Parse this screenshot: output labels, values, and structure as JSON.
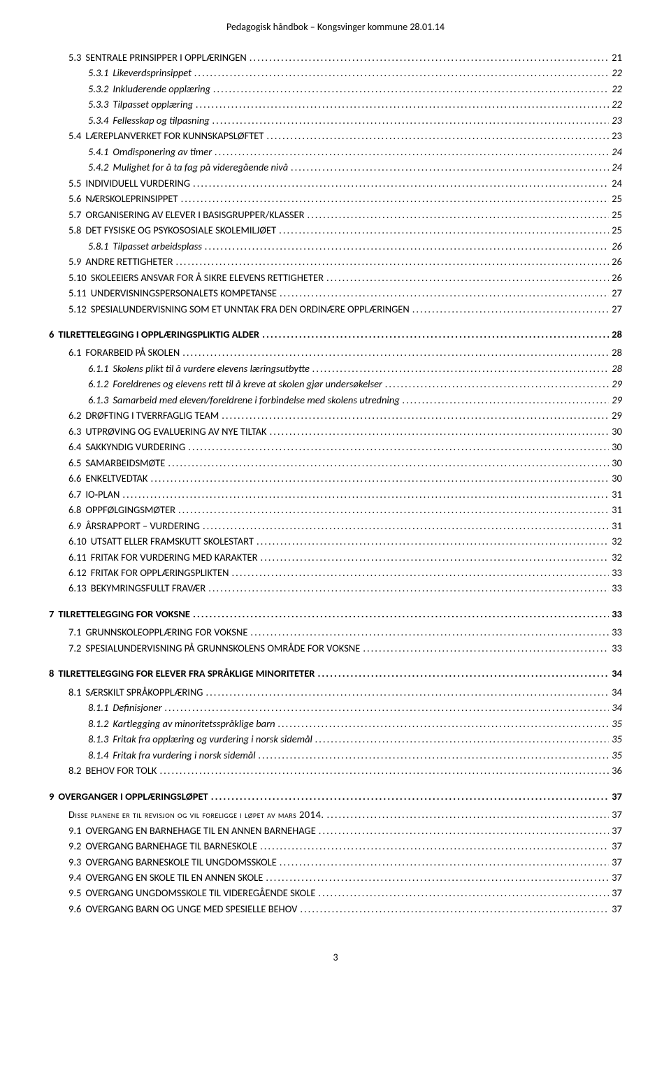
{
  "header": "Pedagogisk håndbok – Kongsvinger kommune 28.01.14",
  "footer_page": "3",
  "toc": [
    {
      "level": 2,
      "num": "5.3",
      "label": "SENTRALE PRINSIPPER I OPPLÆRINGEN",
      "page": "21"
    },
    {
      "level": 3,
      "num": "5.3.1",
      "label": "Likeverdsprinsippet",
      "page": "22"
    },
    {
      "level": 3,
      "num": "5.3.2",
      "label": "Inkluderende opplæring",
      "page": "22"
    },
    {
      "level": 3,
      "num": "5.3.3",
      "label": "Tilpasset opplæring",
      "page": "22"
    },
    {
      "level": 3,
      "num": "5.3.4",
      "label": "Fellesskap og tilpasning",
      "page": "23"
    },
    {
      "level": 2,
      "num": "5.4",
      "label": "LÆREPLANVERKET FOR KUNNSKAPSLØFTET",
      "page": "23"
    },
    {
      "level": 3,
      "num": "5.4.1",
      "label": "Omdisponering av timer",
      "page": "24"
    },
    {
      "level": 3,
      "num": "5.4.2",
      "label": "Mulighet for å ta fag på videregående nivå",
      "page": "24"
    },
    {
      "level": 2,
      "num": "5.5",
      "label": "INDIVIDUELL VURDERING",
      "page": "24"
    },
    {
      "level": 2,
      "num": "5.6",
      "label": "NÆRSKOLEPRINSIPPET",
      "page": "25"
    },
    {
      "level": 2,
      "num": "5.7",
      "label": "ORGANISERING AV ELEVER I BASISGRUPPER/KLASSER",
      "page": "25"
    },
    {
      "level": 2,
      "num": "5.8",
      "label": "DET FYSISKE OG PSYKOSOSIALE SKOLEMILJØET",
      "page": "25"
    },
    {
      "level": 3,
      "num": "5.8.1",
      "label": "Tilpasset arbeidsplass",
      "page": "26"
    },
    {
      "level": 2,
      "num": "5.9",
      "label": "ANDRE RETTIGHETER",
      "page": "26"
    },
    {
      "level": 2,
      "num": "5.10",
      "label": "SKOLEEIERS ANSVAR FOR Å SIKRE ELEVENS RETTIGHETER",
      "page": "26"
    },
    {
      "level": 2,
      "num": "5.11",
      "label": "UNDERVISNINGSPERSONALETS KOMPETANSE",
      "page": "27"
    },
    {
      "level": 2,
      "num": "5.12",
      "label": "SPESIALUNDERVISNING SOM ET UNNTAK FRA DEN ORDINÆRE OPPLÆRINGEN",
      "page": "27"
    },
    {
      "level": 1,
      "num": "6",
      "label": "TILRETTELEGGING I OPPLÆRINGSPLIKTIG ALDER",
      "page": "28"
    },
    {
      "level": 2,
      "num": "6.1",
      "label": "FORARBEID PÅ SKOLEN",
      "page": "28"
    },
    {
      "level": 3,
      "num": "6.1.1",
      "label": "Skolens plikt til å vurdere elevens læringsutbytte",
      "page": "28"
    },
    {
      "level": 3,
      "num": "6.1.2",
      "label": "Foreldrenes og elevens rett til å kreve at skolen gjør undersøkelser",
      "page": "29"
    },
    {
      "level": 3,
      "num": "6.1.3",
      "label": "Samarbeid med eleven/foreldrene i forbindelse med skolens utredning",
      "page": "29"
    },
    {
      "level": 2,
      "num": "6.2",
      "label": "DRØFTING I TVERRFAGLIG TEAM",
      "page": "29"
    },
    {
      "level": 2,
      "num": "6.3",
      "label": "UTPRØVING OG EVALUERING AV NYE TILTAK",
      "page": "30"
    },
    {
      "level": 2,
      "num": "6.4",
      "label": "SAKKYNDIG VURDERING",
      "page": "30"
    },
    {
      "level": 2,
      "num": "6.5",
      "label": "SAMARBEIDSMØTE",
      "page": "30"
    },
    {
      "level": 2,
      "num": "6.6",
      "label": "ENKELTVEDTAK",
      "page": "30"
    },
    {
      "level": 2,
      "num": "6.7",
      "label": "IO-PLAN",
      "page": "31"
    },
    {
      "level": 2,
      "num": "6.8",
      "label": "OPPFØLGINGSMØTER",
      "page": "31"
    },
    {
      "level": 2,
      "num": "6.9",
      "label": "ÅRSRAPPORT – VURDERING",
      "page": "31"
    },
    {
      "level": 2,
      "num": "6.10",
      "label": "UTSATT ELLER FRAMSKUTT SKOLESTART",
      "page": "32"
    },
    {
      "level": 2,
      "num": "6.11",
      "label": "FRITAK FOR VURDERING MED KARAKTER",
      "page": "32"
    },
    {
      "level": 2,
      "num": "6.12",
      "label": "FRITAK FOR OPPLÆRINGSPLIKTEN",
      "page": "33"
    },
    {
      "level": 2,
      "num": "6.13",
      "label": "BEKYMRINGSFULLT FRAVÆR",
      "page": "33"
    },
    {
      "level": 1,
      "num": "7",
      "label": "TILRETTELEGGING FOR VOKSNE",
      "page": "33"
    },
    {
      "level": 2,
      "num": "7.1",
      "label": "GRUNNSKOLEOPPLÆRING FOR VOKSNE",
      "page": "33"
    },
    {
      "level": 2,
      "num": "7.2",
      "label": "SPESIALUNDERVISNING PÅ GRUNNSKOLENS OMRÅDE FOR VOKSNE",
      "page": "33"
    },
    {
      "level": 1,
      "num": "8",
      "label": "TILRETTELEGGING FOR ELEVER FRA SPRÅKLIGE MINORITETER",
      "page": "34"
    },
    {
      "level": 2,
      "num": "8.1",
      "label": "SÆRSKILT SPRÅKOPPLÆRING",
      "page": "34"
    },
    {
      "level": 3,
      "num": "8.1.1",
      "label": "Definisjoner",
      "page": "34"
    },
    {
      "level": 3,
      "num": "8.1.2",
      "label": "Kartlegging av minoritetsspråklige barn",
      "page": "35"
    },
    {
      "level": 3,
      "num": "8.1.3",
      "label": "Fritak fra opplæring og vurdering i norsk sidemål",
      "page": "35"
    },
    {
      "level": 3,
      "num": "8.1.4",
      "label": "Fritak fra vurdering i norsk sidemål",
      "page": "35"
    },
    {
      "level": 2,
      "num": "8.2",
      "label": "BEHOV FOR TOLK",
      "page": "36"
    },
    {
      "level": 1,
      "num": "9",
      "label": "OVERGANGER I OPPLÆRINGSLØPET",
      "page": "37"
    },
    {
      "level": 2,
      "num": "",
      "label": "Disse planene er til revisjon og vil foreligge i løpet av mars 2014.",
      "page": "37",
      "smallcaps": true
    },
    {
      "level": 2,
      "num": "9.1",
      "label": "OVERGANG EN BARNEHAGE TIL EN ANNEN BARNEHAGE",
      "page": "37"
    },
    {
      "level": 2,
      "num": "9.2",
      "label": "OVERGANG BARNEHAGE TIL BARNESKOLE",
      "page": "37"
    },
    {
      "level": 2,
      "num": "9.3",
      "label": "OVERGANG BARNESKOLE TIL UNGDOMSSKOLE",
      "page": "37"
    },
    {
      "level": 2,
      "num": "9.4",
      "label": "OVERGANG EN SKOLE TIL EN ANNEN SKOLE",
      "page": "37"
    },
    {
      "level": 2,
      "num": "9.5",
      "label": "OVERGANG UNGDOMSSKOLE TIL VIDEREGÅENDE SKOLE",
      "page": "37"
    },
    {
      "level": 2,
      "num": "9.6",
      "label": "OVERGANG BARN OG UNGE MED SPESIELLE BEHOV",
      "page": "37"
    }
  ]
}
